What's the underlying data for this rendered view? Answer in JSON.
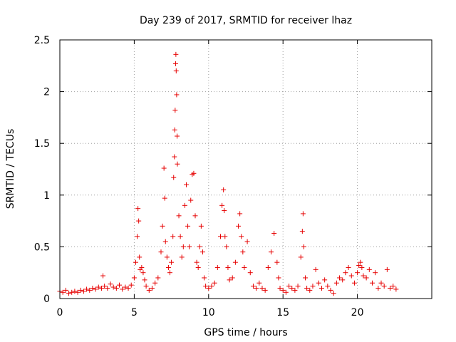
{
  "chart_data": {
    "type": "scatter",
    "title": "Day 239 of 2017, SRMTID for receiver lhaz",
    "xlabel": "GPS time / hours",
    "ylabel": "SRMTID / TECUs",
    "xlim": [
      0,
      25
    ],
    "ylim": [
      0,
      2.5
    ],
    "xticks": [
      0,
      5,
      10,
      15,
      20
    ],
    "xtick_labels": [
      "0",
      "5",
      "10",
      "15",
      "20"
    ],
    "yticks": [
      0,
      0.5,
      1,
      1.5,
      2,
      2.5
    ],
    "ytick_labels": [
      "0",
      "0.5",
      "1",
      "1.5",
      "2",
      "2.5"
    ],
    "grid": true,
    "marker": "+",
    "color": "#e60000",
    "series": [
      {
        "name": "SRMTID",
        "x": [
          0.0,
          0.2,
          0.4,
          0.6,
          0.8,
          1.0,
          1.2,
          1.4,
          1.6,
          1.8,
          2.0,
          2.2,
          2.4,
          2.6,
          2.8,
          2.9,
          3.0,
          3.2,
          3.4,
          3.6,
          3.8,
          4.0,
          4.2,
          4.4,
          4.6,
          4.8,
          5.0,
          5.1,
          5.2,
          5.25,
          5.3,
          5.35,
          5.4,
          5.5,
          5.6,
          5.7,
          5.8,
          6.0,
          6.2,
          6.4,
          6.6,
          6.8,
          6.9,
          7.0,
          7.05,
          7.1,
          7.2,
          7.3,
          7.4,
          7.5,
          7.6,
          7.65,
          7.7,
          7.72,
          7.75,
          7.78,
          7.8,
          7.82,
          7.85,
          7.88,
          7.9,
          8.0,
          8.1,
          8.2,
          8.3,
          8.4,
          8.5,
          8.6,
          8.7,
          8.8,
          8.9,
          9.0,
          9.1,
          9.2,
          9.3,
          9.4,
          9.5,
          9.6,
          9.7,
          9.8,
          10.0,
          10.2,
          10.4,
          10.6,
          10.8,
          10.9,
          11.0,
          11.05,
          11.1,
          11.2,
          11.3,
          11.4,
          11.6,
          11.8,
          12.0,
          12.1,
          12.2,
          12.3,
          12.4,
          12.6,
          12.8,
          13.0,
          13.2,
          13.4,
          13.6,
          13.8,
          14.0,
          14.2,
          14.4,
          14.6,
          14.7,
          14.8,
          15.0,
          15.2,
          15.4,
          15.6,
          15.8,
          16.0,
          16.2,
          16.3,
          16.35,
          16.4,
          16.5,
          16.6,
          16.8,
          17.0,
          17.2,
          17.4,
          17.6,
          17.8,
          18.0,
          18.2,
          18.4,
          18.6,
          18.8,
          19.0,
          19.2,
          19.4,
          19.6,
          19.8,
          20.0,
          20.1,
          20.2,
          20.3,
          20.4,
          20.6,
          20.8,
          21.0,
          21.2,
          21.4,
          21.6,
          21.8,
          22.0,
          22.2,
          22.4,
          22.6
        ],
        "y": [
          0.07,
          0.06,
          0.08,
          0.05,
          0.06,
          0.07,
          0.06,
          0.08,
          0.07,
          0.09,
          0.08,
          0.1,
          0.09,
          0.11,
          0.1,
          0.22,
          0.12,
          0.1,
          0.14,
          0.11,
          0.1,
          0.13,
          0.09,
          0.11,
          0.1,
          0.13,
          0.2,
          0.35,
          0.6,
          0.87,
          0.75,
          0.4,
          0.28,
          0.3,
          0.25,
          0.18,
          0.12,
          0.08,
          0.1,
          0.15,
          0.2,
          0.45,
          0.7,
          1.26,
          0.97,
          0.55,
          0.4,
          0.3,
          0.25,
          0.35,
          0.6,
          1.17,
          1.37,
          1.63,
          1.82,
          2.27,
          2.36,
          2.2,
          1.97,
          1.57,
          1.3,
          0.8,
          0.6,
          0.4,
          0.5,
          0.9,
          1.1,
          0.7,
          0.5,
          0.95,
          1.2,
          1.21,
          0.8,
          0.35,
          0.3,
          0.5,
          0.7,
          0.45,
          0.2,
          0.12,
          0.1,
          0.12,
          0.15,
          0.3,
          0.6,
          0.9,
          1.05,
          0.85,
          0.6,
          0.5,
          0.3,
          0.18,
          0.2,
          0.35,
          0.7,
          0.82,
          0.6,
          0.45,
          0.3,
          0.55,
          0.25,
          0.12,
          0.1,
          0.15,
          0.1,
          0.08,
          0.3,
          0.45,
          0.63,
          0.35,
          0.2,
          0.1,
          0.08,
          0.06,
          0.12,
          0.1,
          0.08,
          0.12,
          0.4,
          0.65,
          0.82,
          0.5,
          0.2,
          0.1,
          0.08,
          0.12,
          0.28,
          0.15,
          0.1,
          0.18,
          0.12,
          0.08,
          0.05,
          0.15,
          0.2,
          0.18,
          0.25,
          0.3,
          0.22,
          0.15,
          0.25,
          0.32,
          0.35,
          0.3,
          0.22,
          0.2,
          0.28,
          0.15,
          0.25,
          0.1,
          0.15,
          0.12,
          0.28,
          0.1,
          0.12,
          0.09
        ]
      }
    ]
  }
}
